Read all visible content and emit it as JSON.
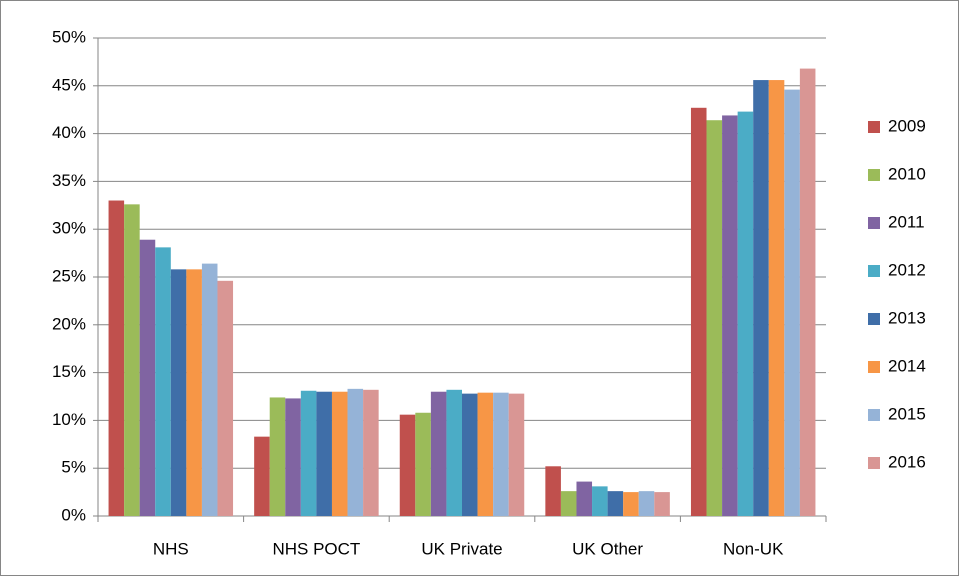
{
  "chart_data": {
    "type": "bar",
    "categories": [
      "NHS",
      "NHS POCT",
      "UK Private",
      "UK Other",
      "Non-UK"
    ],
    "series": [
      {
        "name": "2009",
        "color": "#c0504d",
        "values": [
          33.0,
          8.3,
          10.6,
          5.2,
          42.7
        ]
      },
      {
        "name": "2010",
        "color": "#9bbb59",
        "values": [
          32.6,
          12.4,
          10.8,
          2.6,
          41.4
        ]
      },
      {
        "name": "2011",
        "color": "#8064a2",
        "values": [
          28.9,
          12.3,
          13.0,
          3.6,
          41.9
        ]
      },
      {
        "name": "2012",
        "color": "#4bacc6",
        "values": [
          28.1,
          13.1,
          13.2,
          3.1,
          42.3
        ]
      },
      {
        "name": "2013",
        "color": "#3f6ea8",
        "values": [
          25.8,
          13.0,
          12.8,
          2.6,
          45.6
        ]
      },
      {
        "name": "2014",
        "color": "#f79646",
        "values": [
          25.8,
          13.0,
          12.9,
          2.5,
          45.6
        ]
      },
      {
        "name": "2015",
        "color": "#95b3d7",
        "values": [
          26.4,
          13.3,
          12.9,
          2.6,
          44.6
        ]
      },
      {
        "name": "2016",
        "color": "#d99694",
        "values": [
          24.6,
          13.2,
          12.8,
          2.5,
          46.8
        ]
      }
    ],
    "ylim": [
      0,
      50
    ],
    "yticks": [
      {
        "value": 0,
        "label": "0%"
      },
      {
        "value": 5,
        "label": "5%"
      },
      {
        "value": 10,
        "label": "10%"
      },
      {
        "value": 15,
        "label": "15%"
      },
      {
        "value": 20,
        "label": "20%"
      },
      {
        "value": 25,
        "label": "25%"
      },
      {
        "value": 30,
        "label": "30%"
      },
      {
        "value": 35,
        "label": "35%"
      },
      {
        "value": 40,
        "label": "40%"
      },
      {
        "value": 45,
        "label": "45%"
      },
      {
        "value": 50,
        "label": "50%"
      }
    ],
    "grid": true,
    "legend": "right"
  }
}
